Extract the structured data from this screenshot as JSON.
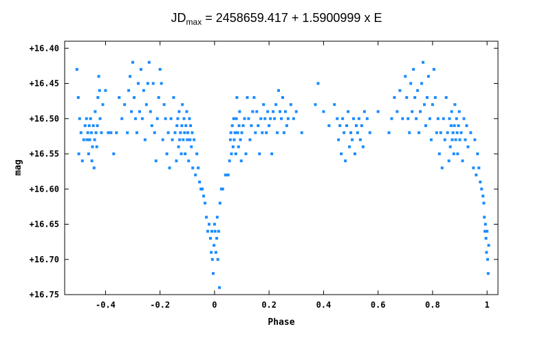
{
  "title": {
    "prefix": "JD",
    "subscript": "max",
    "suffix": " = 2458659.417 + 1.5900999 x E"
  },
  "chart_data": {
    "type": "scatter",
    "xlabel": "Phase",
    "ylabel": "mag",
    "xlim": [
      -0.55,
      1.04
    ],
    "ylim": [
      16.75,
      16.39
    ],
    "y_inverted": true,
    "grid": false,
    "marker_color": "#1a8cff",
    "x_ticks": [
      {
        "value": -0.4,
        "label": "-0.4"
      },
      {
        "value": -0.2,
        "label": "-0.2"
      },
      {
        "value": 0,
        "label": "0"
      },
      {
        "value": 0.2,
        "label": "0.2"
      },
      {
        "value": 0.4,
        "label": "0.4"
      },
      {
        "value": 0.6,
        "label": "0.6"
      },
      {
        "value": 0.8,
        "label": "0.8"
      },
      {
        "value": 1,
        "label": "1"
      }
    ],
    "y_ticks": [
      {
        "value": 16.4,
        "label": "+16.40"
      },
      {
        "value": 16.45,
        "label": "+16.45"
      },
      {
        "value": 16.5,
        "label": "+16.50"
      },
      {
        "value": 16.55,
        "label": "+16.55"
      },
      {
        "value": 16.6,
        "label": "+16.60"
      },
      {
        "value": 16.65,
        "label": "+16.65"
      },
      {
        "value": 16.7,
        "label": "+16.70"
      },
      {
        "value": 16.75,
        "label": "+16.75"
      }
    ],
    "series": [
      {
        "points": [
          [
            -0.505,
            16.43
          ],
          [
            -0.5,
            16.47
          ],
          [
            -0.498,
            16.55
          ],
          [
            -0.495,
            16.5
          ],
          [
            -0.49,
            16.52
          ],
          [
            -0.485,
            16.56
          ],
          [
            -0.48,
            16.53
          ],
          [
            -0.475,
            16.51
          ],
          [
            -0.47,
            16.5
          ],
          [
            -0.468,
            16.53
          ],
          [
            -0.465,
            16.52
          ],
          [
            -0.462,
            16.55
          ],
          [
            -0.46,
            16.51
          ],
          [
            -0.458,
            16.53
          ],
          [
            -0.455,
            16.5
          ],
          [
            -0.452,
            16.52
          ],
          [
            -0.45,
            16.56
          ],
          [
            -0.448,
            16.54
          ],
          [
            -0.445,
            16.51
          ],
          [
            -0.442,
            16.57
          ],
          [
            -0.44,
            16.53
          ],
          [
            -0.438,
            16.49
          ],
          [
            -0.435,
            16.52
          ],
          [
            -0.432,
            16.54
          ],
          [
            -0.43,
            16.51
          ],
          [
            -0.428,
            16.47
          ],
          [
            -0.425,
            16.44
          ],
          [
            -0.422,
            16.46
          ],
          [
            -0.42,
            16.5
          ],
          [
            -0.415,
            16.52
          ],
          [
            -0.41,
            16.48
          ],
          [
            -0.4,
            16.46
          ],
          [
            -0.39,
            16.52
          ],
          [
            -0.38,
            16.52
          ],
          [
            -0.37,
            16.55
          ],
          [
            -0.36,
            16.52
          ],
          [
            -0.35,
            16.47
          ],
          [
            -0.34,
            16.5
          ],
          [
            -0.33,
            16.48
          ],
          [
            -0.32,
            16.52
          ],
          [
            -0.315,
            16.46
          ],
          [
            -0.31,
            16.44
          ],
          [
            -0.305,
            16.49
          ],
          [
            -0.3,
            16.42
          ],
          [
            -0.295,
            16.47
          ],
          [
            -0.29,
            16.5
          ],
          [
            -0.285,
            16.52
          ],
          [
            -0.28,
            16.45
          ],
          [
            -0.275,
            16.49
          ],
          [
            -0.27,
            16.43
          ],
          [
            -0.265,
            16.5
          ],
          [
            -0.26,
            16.46
          ],
          [
            -0.255,
            16.53
          ],
          [
            -0.25,
            16.48
          ],
          [
            -0.245,
            16.45
          ],
          [
            -0.24,
            16.42
          ],
          [
            -0.235,
            16.49
          ],
          [
            -0.23,
            16.51
          ],
          [
            -0.225,
            16.45
          ],
          [
            -0.22,
            16.52
          ],
          [
            -0.215,
            16.56
          ],
          [
            -0.21,
            16.5
          ],
          [
            -0.205,
            16.47
          ],
          [
            -0.2,
            16.43
          ],
          [
            -0.195,
            16.45
          ],
          [
            -0.19,
            16.53
          ],
          [
            -0.185,
            16.48
          ],
          [
            -0.18,
            16.5
          ],
          [
            -0.175,
            16.55
          ],
          [
            -0.17,
            16.52
          ],
          [
            -0.165,
            16.57
          ],
          [
            -0.16,
            16.5
          ],
          [
            -0.155,
            16.53
          ],
          [
            -0.15,
            16.47
          ],
          [
            -0.145,
            16.52
          ],
          [
            -0.14,
            16.56
          ],
          [
            -0.138,
            16.51
          ],
          [
            -0.135,
            16.5
          ],
          [
            -0.132,
            16.54
          ],
          [
            -0.13,
            16.49
          ],
          [
            -0.128,
            16.53
          ],
          [
            -0.125,
            16.52
          ],
          [
            -0.122,
            16.55
          ],
          [
            -0.12,
            16.51
          ],
          [
            -0.118,
            16.48
          ],
          [
            -0.115,
            16.53
          ],
          [
            -0.112,
            16.5
          ],
          [
            -0.11,
            16.52
          ],
          [
            -0.108,
            16.55
          ],
          [
            -0.105,
            16.51
          ],
          [
            -0.102,
            16.49
          ],
          [
            -0.1,
            16.53
          ],
          [
            -0.098,
            16.52
          ],
          [
            -0.095,
            16.56
          ],
          [
            -0.092,
            16.5
          ],
          [
            -0.09,
            16.53
          ],
          [
            -0.088,
            16.51
          ],
          [
            -0.085,
            16.54
          ],
          [
            -0.082,
            16.52
          ],
          [
            -0.08,
            16.57
          ],
          [
            -0.075,
            16.53
          ],
          [
            -0.07,
            16.58
          ],
          [
            -0.065,
            16.55
          ],
          [
            -0.06,
            16.57
          ],
          [
            -0.055,
            16.59
          ],
          [
            -0.05,
            16.6
          ],
          [
            -0.045,
            16.6
          ],
          [
            -0.04,
            16.61
          ],
          [
            -0.035,
            16.62
          ],
          [
            -0.03,
            16.64
          ],
          [
            -0.025,
            16.66
          ],
          [
            -0.02,
            16.65
          ],
          [
            -0.015,
            16.67
          ],
          [
            -0.012,
            16.69
          ],
          [
            -0.01,
            16.66
          ],
          [
            -0.008,
            16.7
          ],
          [
            -0.005,
            16.72
          ],
          [
            -0.002,
            16.68
          ],
          [
            0,
            16.65
          ],
          [
            0.002,
            16.66
          ],
          [
            0.005,
            16.69
          ],
          [
            0.008,
            16.67
          ],
          [
            0.01,
            16.64
          ],
          [
            0.012,
            16.7
          ],
          [
            0.015,
            16.66
          ],
          [
            0.018,
            16.74
          ],
          [
            0.02,
            16.62
          ],
          [
            0.025,
            16.6
          ],
          [
            0.03,
            16.6
          ],
          [
            0.04,
            16.58
          ],
          [
            0.05,
            16.58
          ],
          [
            0.055,
            16.56
          ],
          [
            0.058,
            16.53
          ],
          [
            0.06,
            16.52
          ],
          [
            0.062,
            16.55
          ],
          [
            0.065,
            16.51
          ],
          [
            0.068,
            16.54
          ],
          [
            0.07,
            16.5
          ],
          [
            0.072,
            16.53
          ],
          [
            0.075,
            16.52
          ],
          [
            0.078,
            16.55
          ],
          [
            0.08,
            16.5
          ],
          [
            0.082,
            16.47
          ],
          [
            0.085,
            16.52
          ],
          [
            0.088,
            16.54
          ],
          [
            0.09,
            16.51
          ],
          [
            0.092,
            16.49
          ],
          [
            0.095,
            16.53
          ],
          [
            0.098,
            16.56
          ],
          [
            0.1,
            16.52
          ],
          [
            0.105,
            16.51
          ],
          [
            0.11,
            16.5
          ],
          [
            0.115,
            16.55
          ],
          [
            0.12,
            16.47
          ],
          [
            0.125,
            16.5
          ],
          [
            0.13,
            16.53
          ],
          [
            0.135,
            16.51
          ],
          [
            0.14,
            16.49
          ],
          [
            0.145,
            16.47
          ],
          [
            0.15,
            16.52
          ],
          [
            0.155,
            16.49
          ],
          [
            0.16,
            16.51
          ],
          [
            0.165,
            16.55
          ],
          [
            0.17,
            16.5
          ],
          [
            0.175,
            16.52
          ],
          [
            0.18,
            16.48
          ],
          [
            0.185,
            16.5
          ],
          [
            0.19,
            16.52
          ],
          [
            0.195,
            16.49
          ],
          [
            0.2,
            16.51
          ],
          [
            0.205,
            16.5
          ],
          [
            0.21,
            16.55
          ],
          [
            0.215,
            16.49
          ],
          [
            0.22,
            16.5
          ],
          [
            0.225,
            16.48
          ],
          [
            0.23,
            16.52
          ],
          [
            0.235,
            16.46
          ],
          [
            0.24,
            16.49
          ],
          [
            0.245,
            16.5
          ],
          [
            0.25,
            16.47
          ],
          [
            0.255,
            16.52
          ],
          [
            0.26,
            16.49
          ],
          [
            0.265,
            16.51
          ],
          [
            0.27,
            16.5
          ],
          [
            0.28,
            16.48
          ],
          [
            0.29,
            16.5
          ],
          [
            0.3,
            16.49
          ],
          [
            0.32,
            16.52
          ],
          [
            0.37,
            16.48
          ],
          [
            0.38,
            16.45
          ],
          [
            0.4,
            16.49
          ],
          [
            0.42,
            16.51
          ],
          [
            0.44,
            16.48
          ],
          [
            0.45,
            16.5
          ],
          [
            0.455,
            16.53
          ],
          [
            0.46,
            16.51
          ],
          [
            0.465,
            16.55
          ],
          [
            0.47,
            16.5
          ],
          [
            0.475,
            16.52
          ],
          [
            0.48,
            16.56
          ],
          [
            0.485,
            16.51
          ],
          [
            0.49,
            16.49
          ],
          [
            0.495,
            16.54
          ],
          [
            0.5,
            16.52
          ],
          [
            0.505,
            16.53
          ],
          [
            0.51,
            16.5
          ],
          [
            0.515,
            16.55
          ],
          [
            0.52,
            16.51
          ],
          [
            0.525,
            16.52
          ],
          [
            0.53,
            16.5
          ],
          [
            0.535,
            16.53
          ],
          [
            0.54,
            16.51
          ],
          [
            0.545,
            16.54
          ],
          [
            0.55,
            16.49
          ],
          [
            0.56,
            16.5
          ],
          [
            0.57,
            16.52
          ],
          [
            0.6,
            16.49
          ],
          [
            0.64,
            16.52
          ],
          [
            0.65,
            16.5
          ],
          [
            0.66,
            16.47
          ],
          [
            0.67,
            16.49
          ],
          [
            0.68,
            16.46
          ],
          [
            0.69,
            16.5
          ],
          [
            0.7,
            16.44
          ],
          [
            0.705,
            16.47
          ],
          [
            0.71,
            16.5
          ],
          [
            0.715,
            16.52
          ],
          [
            0.72,
            16.45
          ],
          [
            0.725,
            16.49
          ],
          [
            0.73,
            16.43
          ],
          [
            0.735,
            16.47
          ],
          [
            0.74,
            16.5
          ],
          [
            0.745,
            16.46
          ],
          [
            0.75,
            16.52
          ],
          [
            0.755,
            16.49
          ],
          [
            0.76,
            16.45
          ],
          [
            0.765,
            16.42
          ],
          [
            0.77,
            16.48
          ],
          [
            0.775,
            16.51
          ],
          [
            0.78,
            16.47
          ],
          [
            0.785,
            16.44
          ],
          [
            0.79,
            16.5
          ],
          [
            0.795,
            16.53
          ],
          [
            0.8,
            16.48
          ],
          [
            0.805,
            16.43
          ],
          [
            0.81,
            16.47
          ],
          [
            0.815,
            16.52
          ],
          [
            0.82,
            16.5
          ],
          [
            0.825,
            16.55
          ],
          [
            0.83,
            16.52
          ],
          [
            0.835,
            16.57
          ],
          [
            0.84,
            16.5
          ],
          [
            0.845,
            16.53
          ],
          [
            0.85,
            16.47
          ],
          [
            0.855,
            16.52
          ],
          [
            0.86,
            16.56
          ],
          [
            0.862,
            16.5
          ],
          [
            0.865,
            16.54
          ],
          [
            0.868,
            16.51
          ],
          [
            0.87,
            16.49
          ],
          [
            0.872,
            16.53
          ],
          [
            0.875,
            16.52
          ],
          [
            0.878,
            16.55
          ],
          [
            0.88,
            16.51
          ],
          [
            0.882,
            16.48
          ],
          [
            0.885,
            16.53
          ],
          [
            0.888,
            16.5
          ],
          [
            0.89,
            16.52
          ],
          [
            0.892,
            16.55
          ],
          [
            0.895,
            16.51
          ],
          [
            0.898,
            16.49
          ],
          [
            0.9,
            16.53
          ],
          [
            0.905,
            16.52
          ],
          [
            0.91,
            16.56
          ],
          [
            0.915,
            16.5
          ],
          [
            0.92,
            16.53
          ],
          [
            0.925,
            16.51
          ],
          [
            0.93,
            16.54
          ],
          [
            0.94,
            16.52
          ],
          [
            0.95,
            16.57
          ],
          [
            0.955,
            16.53
          ],
          [
            0.96,
            16.58
          ],
          [
            0.965,
            16.55
          ],
          [
            0.97,
            16.57
          ],
          [
            0.975,
            16.59
          ],
          [
            0.98,
            16.6
          ],
          [
            0.985,
            16.61
          ],
          [
            0.988,
            16.62
          ],
          [
            0.99,
            16.64
          ],
          [
            0.992,
            16.66
          ],
          [
            0.994,
            16.65
          ],
          [
            0.996,
            16.67
          ],
          [
            0.998,
            16.69
          ],
          [
            1,
            16.66
          ],
          [
            1.002,
            16.7
          ],
          [
            1.004,
            16.72
          ],
          [
            1.006,
            16.68
          ]
        ]
      }
    ]
  }
}
